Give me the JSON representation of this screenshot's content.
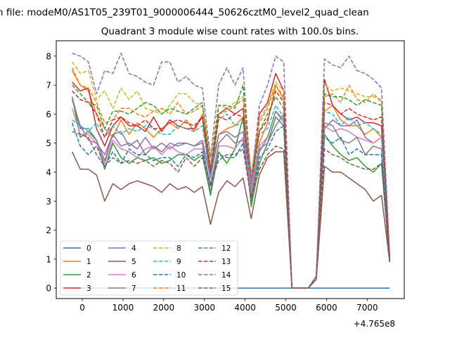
{
  "chart_data": {
    "type": "line",
    "suptitle": "n file: modeM0/AS1T05_239T01_9000006444_50626cztM0_level2_quad_clean",
    "title": "Quadrant 3 module wise count rates with 100.0s bins.",
    "xlabel": "",
    "ylabel": "",
    "x_offset_label": "+4.765e8",
    "xlim": [
      -640,
      7910
    ],
    "ylim": [
      -0.36,
      8.53
    ],
    "xticks": [
      0,
      1000,
      2000,
      3000,
      4000,
      5000,
      6000,
      7000
    ],
    "yticks": [
      0,
      1,
      2,
      3,
      4,
      5,
      6,
      7,
      8
    ],
    "legend_placement": "lower-left",
    "x": [
      -250,
      -50,
      150,
      350,
      550,
      750,
      950,
      1150,
      1350,
      1550,
      1750,
      1950,
      2150,
      2350,
      2550,
      2750,
      2950,
      3150,
      3350,
      3550,
      3750,
      3950,
      4150,
      4350,
      4550,
      4750,
      4950,
      5150,
      5350,
      5550,
      5750,
      5950,
      6150,
      6350,
      6550,
      6750,
      6950,
      7150,
      7350,
      7550
    ],
    "series": [
      {
        "name": "0",
        "color": "#1f77b4",
        "dash": false,
        "values": [
          0,
          0,
          0,
          0,
          0,
          0,
          0,
          0,
          0,
          0,
          0,
          0,
          0,
          0,
          0,
          0,
          0,
          0,
          0,
          0,
          0,
          0,
          0,
          0,
          0,
          0,
          0,
          0,
          0,
          0,
          0,
          0,
          0,
          0,
          0,
          0,
          0,
          0,
          0,
          0
        ]
      },
      {
        "name": "1",
        "color": "#ff7f0e",
        "dash": false,
        "values": [
          7.5,
          7.0,
          6.8,
          6.0,
          5.5,
          5.2,
          5.8,
          5.3,
          5.7,
          5.5,
          5.2,
          5.5,
          5.7,
          5.5,
          5.8,
          5.4,
          6.0,
          4.0,
          5.3,
          5.5,
          5.6,
          5.9,
          3.4,
          5.0,
          5.7,
          7.0,
          6.5,
          0,
          0,
          0,
          0.4,
          6.1,
          6.3,
          5.8,
          5.6,
          5.6,
          5.3,
          5.5,
          5.2,
          1.0
        ]
      },
      {
        "name": "2",
        "color": "#2ca02c",
        "dash": false,
        "values": [
          6.6,
          5.2,
          5.4,
          5.1,
          4.1,
          5.0,
          4.5,
          4.3,
          4.5,
          4.4,
          4.5,
          4.3,
          4.4,
          4.6,
          4.6,
          4.4,
          4.6,
          3.2,
          4.7,
          4.3,
          4.8,
          5.9,
          2.8,
          4.3,
          5.0,
          5.9,
          5.6,
          0,
          0,
          0,
          0.4,
          5.3,
          4.9,
          4.6,
          4.4,
          4.5,
          4.2,
          4.0,
          4.3,
          0.9
        ]
      },
      {
        "name": "3",
        "color": "#d62728",
        "dash": false,
        "values": [
          7.1,
          6.8,
          6.9,
          5.5,
          4.9,
          5.6,
          5.9,
          5.6,
          5.6,
          5.4,
          5.9,
          5.4,
          5.8,
          5.6,
          5.5,
          5.5,
          5.9,
          3.8,
          6.0,
          6.2,
          6.0,
          6.2,
          3.2,
          6.0,
          6.4,
          7.4,
          6.8,
          0,
          0,
          0,
          0.4,
          7.2,
          6.3,
          6.0,
          5.8,
          5.9,
          5.7,
          5.7,
          5.6,
          0.9
        ]
      },
      {
        "name": "4",
        "color": "#9467bd",
        "dash": false,
        "values": [
          6.5,
          5.6,
          5.1,
          5.0,
          4.6,
          5.3,
          4.9,
          5.0,
          4.8,
          5.2,
          4.8,
          5.0,
          4.8,
          5.0,
          5.0,
          4.9,
          5.1,
          3.8,
          5.3,
          5.4,
          5.2,
          5.4,
          3.2,
          4.8,
          5.0,
          5.6,
          6.0,
          0,
          0,
          0,
          0.4,
          5.5,
          5.8,
          5.6,
          5.6,
          5.8,
          5.2,
          5.0,
          5.2,
          1.0
        ]
      },
      {
        "name": "5",
        "color": "#8c564b",
        "dash": false,
        "values": [
          4.7,
          4.1,
          4.1,
          3.9,
          3.0,
          3.6,
          3.4,
          3.6,
          3.7,
          3.6,
          3.5,
          3.3,
          3.6,
          3.4,
          3.5,
          3.3,
          3.5,
          2.2,
          3.3,
          3.7,
          3.5,
          3.8,
          2.4,
          3.9,
          4.5,
          4.7,
          4.7,
          0,
          0,
          0,
          0.3,
          4.2,
          4.0,
          4.0,
          3.8,
          3.6,
          3.4,
          3.0,
          3.2,
          0.9
        ]
      },
      {
        "name": "6",
        "color": "#e377c2",
        "dash": false,
        "values": [
          6.2,
          5.3,
          5.3,
          5.0,
          4.3,
          5.1,
          4.8,
          4.7,
          4.5,
          4.8,
          4.9,
          4.6,
          4.9,
          4.7,
          4.6,
          4.8,
          4.8,
          3.6,
          4.9,
          4.9,
          4.8,
          5.2,
          3.3,
          4.9,
          5.2,
          6.1,
          5.7,
          0,
          0,
          0,
          0.4,
          5.6,
          5.4,
          5.5,
          5.4,
          5.2,
          5.1,
          5.0,
          5.2,
          1.0
        ]
      },
      {
        "name": "7",
        "color": "#7f7f7f",
        "dash": false,
        "values": [
          6.6,
          5.5,
          5.5,
          5.1,
          4.4,
          5.3,
          5.4,
          4.9,
          5.1,
          4.6,
          4.9,
          4.7,
          5.0,
          4.9,
          5.0,
          4.9,
          5.0,
          3.3,
          5.0,
          5.3,
          5.0,
          5.1,
          3.0,
          4.7,
          5.2,
          6.1,
          5.8,
          0,
          0,
          0,
          0.4,
          5.7,
          5.6,
          5.1,
          5.0,
          5.2,
          4.6,
          4.9,
          4.8,
          0.9
        ]
      },
      {
        "name": "8",
        "color": "#bcbd22",
        "dash": true,
        "values": [
          7.8,
          7.4,
          7.5,
          6.5,
          6.8,
          6.2,
          6.9,
          6.5,
          6.8,
          6.2,
          6.1,
          6.0,
          6.3,
          6.7,
          6.7,
          6.4,
          6.3,
          4.5,
          6.3,
          6.2,
          6.4,
          6.6,
          4.0,
          5.8,
          6.3,
          7.1,
          6.8,
          0,
          0,
          0,
          0.4,
          7.0,
          6.8,
          6.9,
          6.8,
          6.7,
          6.6,
          6.6,
          6.5,
          1.1
        ]
      },
      {
        "name": "9",
        "color": "#17becf",
        "dash": true,
        "values": [
          5.8,
          5.6,
          5.4,
          5.7,
          5.2,
          5.6,
          5.3,
          5.5,
          5.4,
          5.6,
          5.5,
          5.3,
          5.3,
          5.6,
          5.5,
          5.4,
          5.6,
          3.8,
          5.8,
          6.0,
          5.6,
          5.7,
          3.4,
          5.3,
          5.5,
          6.3,
          5.9,
          0,
          0,
          0,
          0.4,
          6.1,
          6.0,
          5.6,
          5.9,
          5.6,
          5.7,
          5.5,
          5.3,
          1.0
        ]
      },
      {
        "name": "10",
        "color": "#1f77b4",
        "dash": true,
        "values": [
          5.7,
          4.9,
          4.6,
          4.9,
          4.2,
          4.7,
          4.3,
          4.8,
          4.6,
          4.6,
          4.4,
          4.5,
          4.5,
          4.2,
          4.6,
          4.5,
          4.7,
          3.5,
          4.6,
          4.5,
          4.5,
          5.0,
          3.0,
          4.5,
          4.8,
          5.4,
          5.6,
          0,
          0,
          0,
          0.4,
          5.2,
          5.0,
          5.2,
          4.6,
          4.8,
          4.6,
          4.6,
          4.6,
          1.0
        ]
      },
      {
        "name": "11",
        "color": "#ff7f0e",
        "dash": true,
        "values": [
          7.6,
          7.0,
          6.9,
          6.4,
          5.7,
          5.8,
          6.2,
          6.2,
          6.0,
          5.9,
          6.1,
          6.2,
          6.0,
          6.4,
          6.0,
          6.1,
          6.3,
          4.2,
          6.0,
          6.1,
          6.3,
          6.5,
          3.5,
          5.7,
          6.2,
          7.0,
          6.6,
          0,
          0,
          0,
          0.4,
          6.6,
          6.7,
          6.4,
          7.0,
          6.5,
          6.4,
          6.7,
          6.4,
          1.1
        ]
      },
      {
        "name": "12",
        "color": "#2ca02c",
        "dash": true,
        "values": [
          7.0,
          6.7,
          6.4,
          6.3,
          5.5,
          6.1,
          6.1,
          6.0,
          6.2,
          6.4,
          6.3,
          6.0,
          6.2,
          6.1,
          6.0,
          6.2,
          6.4,
          4.1,
          6.3,
          6.3,
          6.2,
          7.0,
          3.7,
          5.4,
          6.0,
          6.6,
          6.2,
          0,
          0,
          0,
          0.4,
          6.7,
          6.6,
          6.6,
          6.5,
          6.3,
          6.5,
          6.4,
          6.3,
          1.0
        ]
      },
      {
        "name": "13",
        "color": "#d62728",
        "dash": true,
        "values": [
          6.8,
          6.5,
          6.4,
          6.0,
          5.2,
          5.8,
          5.9,
          5.7,
          5.6,
          5.8,
          5.5,
          5.5,
          5.7,
          5.8,
          5.7,
          5.6,
          5.9,
          4.0,
          5.9,
          5.8,
          6.0,
          5.9,
          3.8,
          5.4,
          5.8,
          6.8,
          6.4,
          0,
          0,
          0,
          0.4,
          6.4,
          6.3,
          6.0,
          6.2,
          6.0,
          5.9,
          5.8,
          5.9,
          1.0
        ]
      },
      {
        "name": "14",
        "color": "#9467bd",
        "dash": true,
        "values": [
          8.1,
          8.0,
          7.8,
          6.7,
          7.5,
          7.4,
          8.1,
          7.4,
          7.3,
          7.1,
          7.0,
          7.8,
          7.8,
          7.1,
          7.3,
          7.0,
          6.9,
          4.5,
          7.0,
          7.6,
          7.0,
          7.6,
          3.6,
          6.3,
          7.0,
          8.0,
          7.8,
          0,
          0,
          0,
          0.4,
          7.9,
          7.7,
          7.6,
          8.0,
          7.5,
          7.4,
          7.2,
          6.9,
          1.2
        ]
      },
      {
        "name": "15",
        "color": "#8c564b",
        "dash": true,
        "values": [
          5.4,
          5.3,
          5.2,
          4.6,
          4.2,
          4.5,
          4.3,
          4.4,
          4.3,
          4.4,
          4.2,
          4.4,
          4.3,
          4.0,
          4.5,
          4.2,
          4.5,
          3.6,
          4.4,
          4.6,
          4.6,
          4.8,
          3.1,
          4.1,
          4.6,
          4.9,
          4.8,
          0,
          0,
          0,
          0.4,
          4.8,
          4.6,
          4.5,
          4.3,
          4.2,
          4.1,
          4.1,
          4.3,
          0.9
        ]
      }
    ]
  }
}
